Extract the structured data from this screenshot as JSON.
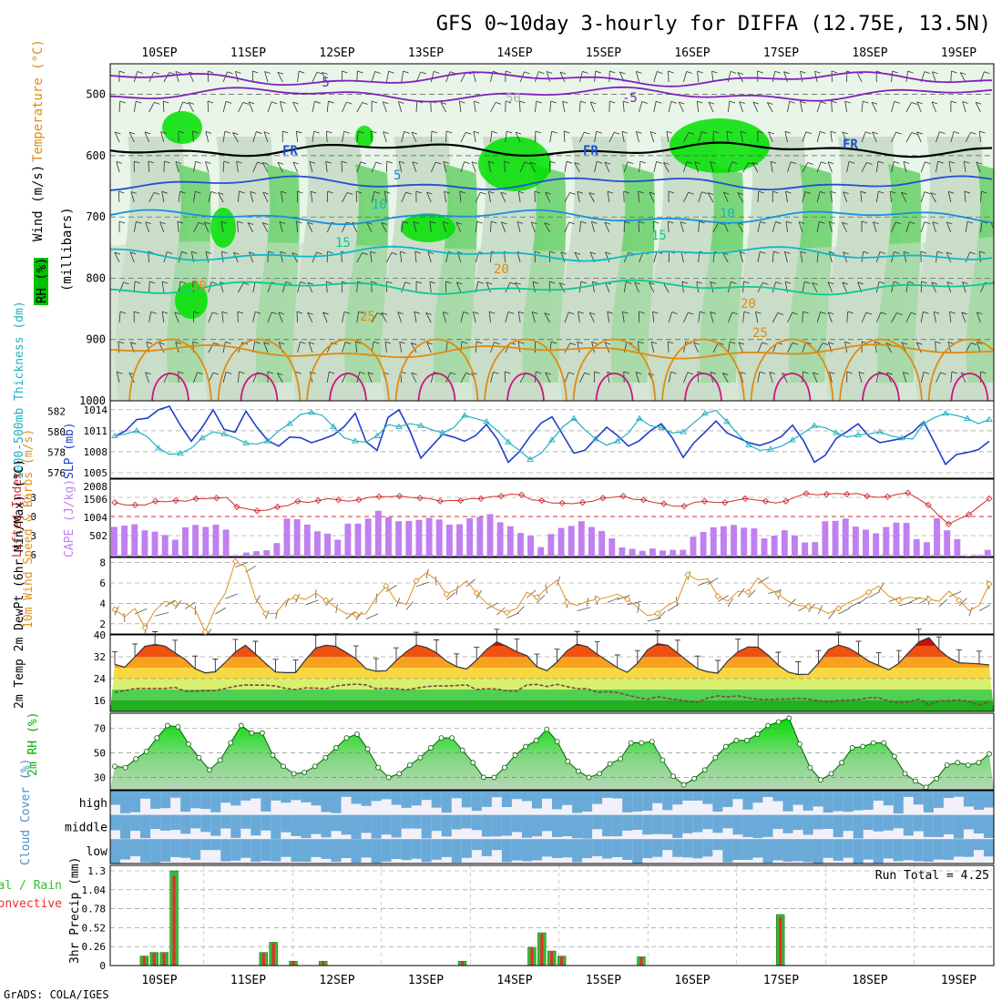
{
  "title": "GFS 0~10day 3-hourly for DIFFA (12.75E, 13.5N)",
  "credit": "GrADS: COLA/IGES",
  "dates": [
    "10SEP",
    "11SEP",
    "12SEP",
    "13SEP",
    "14SEP",
    "15SEP",
    "16SEP",
    "17SEP",
    "18SEP",
    "19SEP"
  ],
  "colors": {
    "rh_light": "#e8f5e8",
    "rh_mid": "#c8dcc8",
    "rh_green": "#6fd36f",
    "rh_bright": "#00e000",
    "slp": "#1f3fcc",
    "thickness": "#20b0c0",
    "lifted": "#d03030",
    "cape": "#c080f0",
    "wind": "#e09020",
    "rh2m": "#00d000",
    "cloud": "#6aaad8",
    "cloud_gap": "#f2f0f8",
    "precip_total": "#30c030",
    "precip_conv": "#e03030"
  },
  "chart_data": [
    {
      "type": "heatmap",
      "ylabel": "(millibars)",
      "left_labels": [
        "Wind (m/s)",
        "Temperature (°C)",
        "RH (%)"
      ],
      "y_ticks": [
        500,
        600,
        700,
        800,
        900,
        1000
      ],
      "ylim": [
        1000,
        450
      ],
      "contours": [
        {
          "label": "-5",
          "level_mb": 500,
          "color": "#8020c0"
        },
        {
          "label": "-5",
          "level_mb": 475,
          "color": "#8020c0"
        },
        {
          "label": "FR",
          "level_mb": 590,
          "color": "#000000"
        },
        {
          "label": "5",
          "level_mb": 645,
          "color": "#2050d0"
        },
        {
          "label": "10",
          "level_mb": 700,
          "color": "#1890e0"
        },
        {
          "label": "15",
          "level_mb": 760,
          "color": "#10b8c8"
        },
        {
          "label": "20",
          "level_mb": 815,
          "color": "#10c890"
        },
        {
          "label": "25",
          "level_mb": 920,
          "color": "#e08a10"
        }
      ],
      "contour_labels": [
        "-5",
        "-5",
        "50",
        "FR",
        "FR",
        "FR",
        "5",
        "10",
        "10",
        "15",
        "15",
        "20",
        "20",
        "20",
        "25",
        "25"
      ]
    },
    {
      "type": "line",
      "ylabel_left": "1000-500mb Thickness (dm)",
      "ylabel_right": "SLP (mb)",
      "left_ticks": [
        582,
        580,
        578,
        576
      ],
      "right_ticks": [
        1014,
        1011,
        1008,
        1005
      ],
      "series": [
        {
          "name": "SLP",
          "axis": "right",
          "values": [
            1010.2,
            1011.0,
            1012.6,
            1012.8,
            1014.0,
            1014.5,
            1011.8,
            1009.5,
            1011.5,
            1014.0,
            1011.2,
            1010.8,
            1013.8,
            1011.5,
            1009.6,
            1008.8,
            1010.1,
            1010.0,
            1009.3,
            1009.8,
            1010.4,
            1011.6,
            1013.5,
            1009.4,
            1008.2,
            1012.9,
            1014.0,
            1011.0,
            1007.1,
            1008.8,
            1010.5,
            1010.1,
            1009.5,
            1010.3,
            1011.9,
            1009.8,
            1006.5,
            1008.0,
            1010.2,
            1012.1,
            1013.0,
            1010.4,
            1007.8,
            1008.2,
            1009.9,
            1011.5,
            1010.3,
            1008.8,
            1009.6,
            1011.0,
            1012.0,
            1010.0,
            1007.2,
            1009.3,
            1010.8,
            1012.4,
            1010.7,
            1010.0,
            1009.3,
            1008.9,
            1009.4,
            1010.2,
            1011.8,
            1009.6,
            1006.5,
            1007.5,
            1009.9,
            1010.9,
            1012.0,
            1010.2,
            1009.3,
            1009.6,
            1009.9,
            1010.8,
            1012.3,
            1009.3,
            1006.2,
            1007.6,
            1007.9,
            1008.3,
            1009.5
          ]
        },
        {
          "name": "Thickness",
          "axis": "left",
          "values": [
            579.6,
            579.8,
            580.1,
            579.5,
            578.4,
            577.8,
            577.9,
            578.4,
            579.4,
            580.0,
            579.8,
            579.4,
            578.9,
            578.8,
            579.1,
            580.1,
            580.8,
            581.7,
            581.9,
            581.6,
            580.5,
            579.4,
            579.1,
            579.0,
            579.6,
            580.7,
            580.5,
            580.8,
            580.6,
            580.2,
            579.9,
            580.4,
            581.6,
            581.3,
            581.0,
            580.1,
            579.0,
            578.2,
            577.3,
            577.9,
            579.2,
            580.5,
            581.3,
            580.2,
            579.3,
            578.7,
            579.1,
            579.9,
            581.3,
            580.6,
            580.4,
            579.9,
            580.0,
            580.9,
            581.8,
            582.1,
            581.0,
            579.8,
            578.7,
            578.2,
            578.3,
            578.6,
            579.2,
            579.9,
            580.6,
            580.4,
            579.9,
            579.5,
            579.7,
            579.8,
            580.0,
            579.6,
            579.4,
            579.3,
            580.8,
            581.4,
            581.8,
            581.6,
            581.3,
            580.8,
            581.2
          ]
        }
      ]
    },
    {
      "type": "bar",
      "ylabel_left": "Lifted Index",
      "ylabel_right": "CAPE (J/kg)",
      "left_ticks": [
        "-3",
        "0",
        "3",
        "6"
      ],
      "right_ticks": [
        "2008",
        "1506",
        "1004",
        "502"
      ],
      "series": [
        {
          "name": "CAPE",
          "type": "bar",
          "values": [
            880,
            920,
            960,
            780,
            740,
            640,
            500,
            870,
            940,
            880,
            950,
            800,
            30,
            120,
            160,
            190,
            400,
            1130,
            1110,
            950,
            750,
            680,
            500,
            980,
            980,
            1130,
            1360,
            1170,
            1050,
            1060,
            1090,
            1150,
            1100,
            950,
            960,
            1140,
            1180,
            1260,
            1020,
            900,
            700,
            620,
            280,
            670,
            850,
            910,
            1050,
            880,
            760,
            540,
            270,
            230,
            170,
            240,
            180,
            200,
            200,
            590,
            730,
            870,
            900,
            940,
            860,
            840,
            540,
            620,
            780,
            630,
            420,
            430,
            1050,
            1060,
            1130,
            890,
            800,
            690,
            880,
            1010,
            1000,
            520,
            430,
            1140,
            780,
            520,
            20,
            40,
            200
          ]
        },
        {
          "name": "Lifted Index",
          "type": "line",
          "values": [
            -2.2,
            -1.8,
            -1.8,
            -1.8,
            -2.4,
            -2.3,
            -2.5,
            -2.4,
            -2.8,
            -2.8,
            -2.9,
            -3.0,
            -1.5,
            -1.2,
            -0.9,
            -1.0,
            -1.5,
            -1.7,
            -2.4,
            -2.2,
            -2.5,
            -2.8,
            -2.6,
            -2.4,
            -2.6,
            -3.0,
            -3.1,
            -3.1,
            -3.2,
            -3.0,
            -2.9,
            -2.8,
            -2.4,
            -2.5,
            -2.5,
            -2.8,
            -2.8,
            -3.1,
            -3.2,
            -3.5,
            -3.4,
            -2.6,
            -2.5,
            -2.1,
            -2.1,
            -2.0,
            -2.2,
            -2.4,
            -2.9,
            -3.0,
            -3.2,
            -2.7,
            -2.6,
            -2.2,
            -2.0,
            -1.6,
            -1.6,
            -2.2,
            -2.4,
            -2.2,
            -2.2,
            -2.5,
            -2.8,
            -2.6,
            -2.4,
            -2.1,
            -2.4,
            -3.1,
            -3.6,
            -3.4,
            -3.5,
            -3.6,
            -3.5,
            -3.6,
            -3.2,
            -3.0,
            -3.1,
            -3.5,
            -3.7,
            -2.8,
            -1.8,
            -0.2,
            1.2,
            0.4,
            -0.3,
            -1.6,
            -2.8
          ]
        }
      ]
    },
    {
      "type": "line",
      "ylabel": "10m Wind Speed & Barbs (m/s)",
      "y_ticks": [
        2,
        4,
        6,
        8
      ],
      "ylim": [
        1,
        8.5
      ],
      "series": [
        {
          "name": "10m Wind Speed",
          "values": [
            3.4,
            2.7,
            3.5,
            1.6,
            3.3,
            4.2,
            4.0,
            4.0,
            3.4,
            1.2,
            3.5,
            5.0,
            8.1,
            7.6,
            4.5,
            3.0,
            3.0,
            4.2,
            4.6,
            4.4,
            5.0,
            4.3,
            3.6,
            3.0,
            2.9,
            3.0,
            4.6,
            5.7,
            4.2,
            3.9,
            6.2,
            7.0,
            6.3,
            4.9,
            5.4,
            6.2,
            5.0,
            4.0,
            3.4,
            3.1,
            3.5,
            5.1,
            4.6,
            5.5,
            6.3,
            4.1,
            3.8,
            4.2,
            4.4,
            4.6,
            4.9,
            4.4,
            3.6,
            2.8,
            3.0,
            3.8,
            4.3,
            6.8,
            6.3,
            6.4,
            4.7,
            4.2,
            5.2,
            5.1,
            6.5,
            5.5,
            4.9,
            4.2,
            3.8,
            3.7,
            3.5,
            3.0,
            3.5,
            4.1,
            4.5,
            5.1,
            5.7,
            4.7,
            4.3,
            4.6,
            4.5,
            4.4,
            4.2,
            5.2,
            4.3,
            3.3,
            3.8,
            5.9
          ]
        }
      ]
    },
    {
      "type": "area",
      "ylabel": "2m Temp 2m DewPt (6hr Min/Max) (°C)",
      "y_ticks": [
        16,
        24,
        32,
        40
      ],
      "ylim": [
        12,
        40
      ],
      "series": [
        {
          "name": "2m Temp",
          "values": [
            29.2,
            28.2,
            32.0,
            35.8,
            36.5,
            35.9,
            33.4,
            31.0,
            27.6,
            26.1,
            26.5,
            30.0,
            33.7,
            36.2,
            33.0,
            29.6,
            26.4,
            26.2,
            26.2,
            31.0,
            35.2,
            36.2,
            35.8,
            33.6,
            31.3,
            27.6,
            26.7,
            26.9,
            30.6,
            33.8,
            36.3,
            35.4,
            33.5,
            30.4,
            28.4,
            27.5,
            30.8,
            34.7,
            37.4,
            35.8,
            33.8,
            32.4,
            28.3,
            26.9,
            30.1,
            34.2,
            36.6,
            35.7,
            32.9,
            30.5,
            28.0,
            26.3,
            29.6,
            34.5,
            36.8,
            36.2,
            33.4,
            30.4,
            27.6,
            26.5,
            26.0,
            30.5,
            33.8,
            35.6,
            35.5,
            32.6,
            29.0,
            26.4,
            25.5,
            25.6,
            29.6,
            34.6,
            36.3,
            35.2,
            33.0,
            30.4,
            28.8,
            27.2,
            29.6,
            33.6,
            37.4,
            39.0,
            34.6,
            31.6,
            29.8,
            29.6,
            29.4,
            29.0
          ]
        },
        {
          "name": "2m DewPt",
          "values": [
            19.0,
            19.6,
            20.4,
            20.4,
            20.4,
            20.4,
            20.8,
            19.4,
            19.4,
            19.6,
            19.6,
            20.4,
            21.2,
            21.7,
            21.6,
            21.6,
            21.3,
            20.4,
            20.0,
            20.6,
            20.5,
            20.3,
            21.3,
            21.7,
            22.0,
            21.7,
            20.3,
            20.5,
            20.3,
            19.9,
            20.5,
            21.1,
            21.3,
            21.3,
            21.5,
            21.7,
            20.0,
            20.3,
            20.2,
            19.5,
            19.5,
            21.7,
            21.9,
            21.1,
            21.9,
            21.1,
            20.3,
            20.3,
            19.0,
            19.2,
            18.9,
            18.0,
            17.1,
            16.4,
            17.4,
            16.7,
            16.3,
            15.7,
            15.3,
            16.9,
            17.7,
            17.3,
            17.7,
            16.9,
            16.5,
            16.3,
            16.5,
            16.5,
            16.8,
            16.5,
            15.9,
            15.5,
            16.0,
            16.1,
            16.4,
            17.0,
            17.0,
            15.7,
            15.3,
            15.5,
            16.5,
            14.4,
            15.9,
            15.9,
            16.2,
            15.6,
            14.3,
            15.6
          ]
        }
      ]
    },
    {
      "type": "area",
      "ylabel": "2m RH (%)",
      "y_ticks": [
        30,
        50,
        70
      ],
      "ylim": [
        20,
        82
      ],
      "series": [
        {
          "name": "2m RH",
          "values": [
            39,
            38,
            45,
            51,
            62,
            72,
            71,
            57,
            46,
            36,
            44,
            58,
            72,
            66,
            66,
            48,
            39,
            33,
            34,
            39,
            46,
            54,
            62,
            65,
            53,
            38,
            30,
            33,
            40,
            46,
            54,
            62,
            62,
            52,
            42,
            30,
            30,
            38,
            48,
            55,
            60,
            69,
            59,
            43,
            35,
            30,
            33,
            41,
            45,
            58,
            58,
            59,
            44,
            31,
            24,
            29,
            36,
            46,
            55,
            60,
            60,
            65,
            72,
            75,
            78,
            57,
            38,
            28,
            33,
            42,
            54,
            55,
            58,
            58,
            47,
            33,
            27,
            22,
            29,
            40,
            42,
            40,
            42,
            49
          ]
        }
      ]
    },
    {
      "type": "heatmap",
      "ylabel": "Cloud Cover (%)",
      "levels": [
        "high",
        "middle",
        "low"
      ]
    },
    {
      "type": "bar",
      "ylabel_left": "3hr Precip (mm)",
      "left_labels": [
        "Total / Rain",
        "Convective"
      ],
      "y_ticks": [
        "0",
        "0.26",
        "0.52",
        "0.78",
        "1.04",
        "1.3"
      ],
      "ylim": [
        0,
        1.3
      ],
      "run_total_label": "Run Total = 4.25",
      "series": [
        {
          "name": "Total",
          "values": [
            0,
            0.13,
            0.18,
            0.18,
            1.3,
            0,
            0,
            0,
            0,
            0,
            0,
            0,
            0,
            0.18,
            0.32,
            0,
            0.06,
            0,
            0,
            0.06,
            0,
            0,
            0,
            0,
            0,
            0,
            0,
            0,
            0,
            0,
            0,
            0,
            0,
            0.06,
            0,
            0,
            0,
            0,
            0,
            0,
            0.25,
            0.45,
            0.2,
            0.13,
            0,
            0,
            0,
            0,
            0,
            0,
            0,
            0.12,
            0,
            0,
            0,
            0,
            0,
            0,
            0,
            0,
            0,
            0,
            0,
            0,
            0,
            0.7,
            0,
            0,
            0,
            0,
            0,
            0,
            0,
            0,
            0,
            0,
            0,
            0,
            0,
            0,
            0,
            0,
            0,
            0,
            0,
            0,
            0,
            0
          ]
        }
      ]
    }
  ]
}
